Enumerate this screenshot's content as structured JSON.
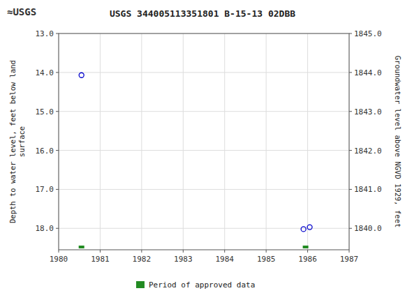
{
  "chart_data": {
    "type": "scatter",
    "title": "USGS 344005113351801 B-15-13 02DBB",
    "annotations": [
      "≈USGS"
    ],
    "y_label": "Depth to water level, feet below land\nsurface",
    "y2_label": "Groundwater level above NGVD 1929, feet",
    "xlim": [
      1980,
      1987
    ],
    "xticks": [
      1980,
      1981,
      1982,
      1983,
      1984,
      1985,
      1986,
      1987
    ],
    "ylim": [
      18.55,
      13.0
    ],
    "yticks": [
      {
        "value": 13.0,
        "label": "13.0"
      },
      {
        "value": 14.0,
        "label": "14.0"
      },
      {
        "value": 15.0,
        "label": "15.0"
      },
      {
        "value": 16.0,
        "label": "16.0"
      },
      {
        "value": 17.0,
        "label": "17.0"
      },
      {
        "value": 18.0,
        "label": "18.0"
      }
    ],
    "y2lim": [
      1839.45,
      1845.0
    ],
    "y2ticks": [
      {
        "value": 1845.0,
        "label": "1845.0"
      },
      {
        "value": 1844.0,
        "label": "1844.0"
      },
      {
        "value": 1843.0,
        "label": "1843.0"
      },
      {
        "value": 1842.0,
        "label": "1842.0"
      },
      {
        "value": 1841.0,
        "label": "1841.0"
      },
      {
        "value": 1840.0,
        "label": "1840.0"
      }
    ],
    "grid": true,
    "legend": "bottom",
    "series": [
      {
        "type": "scatter",
        "color": "#0000cc",
        "marker": "circle",
        "x": [
          1980.55,
          1985.9,
          1986.05
        ],
        "values": [
          14.07,
          18.02,
          17.97
        ]
      },
      {
        "type": "period",
        "name": "Period of approved data",
        "color": "#228b22",
        "x": [
          1980.55,
          1985.95
        ]
      }
    ]
  }
}
